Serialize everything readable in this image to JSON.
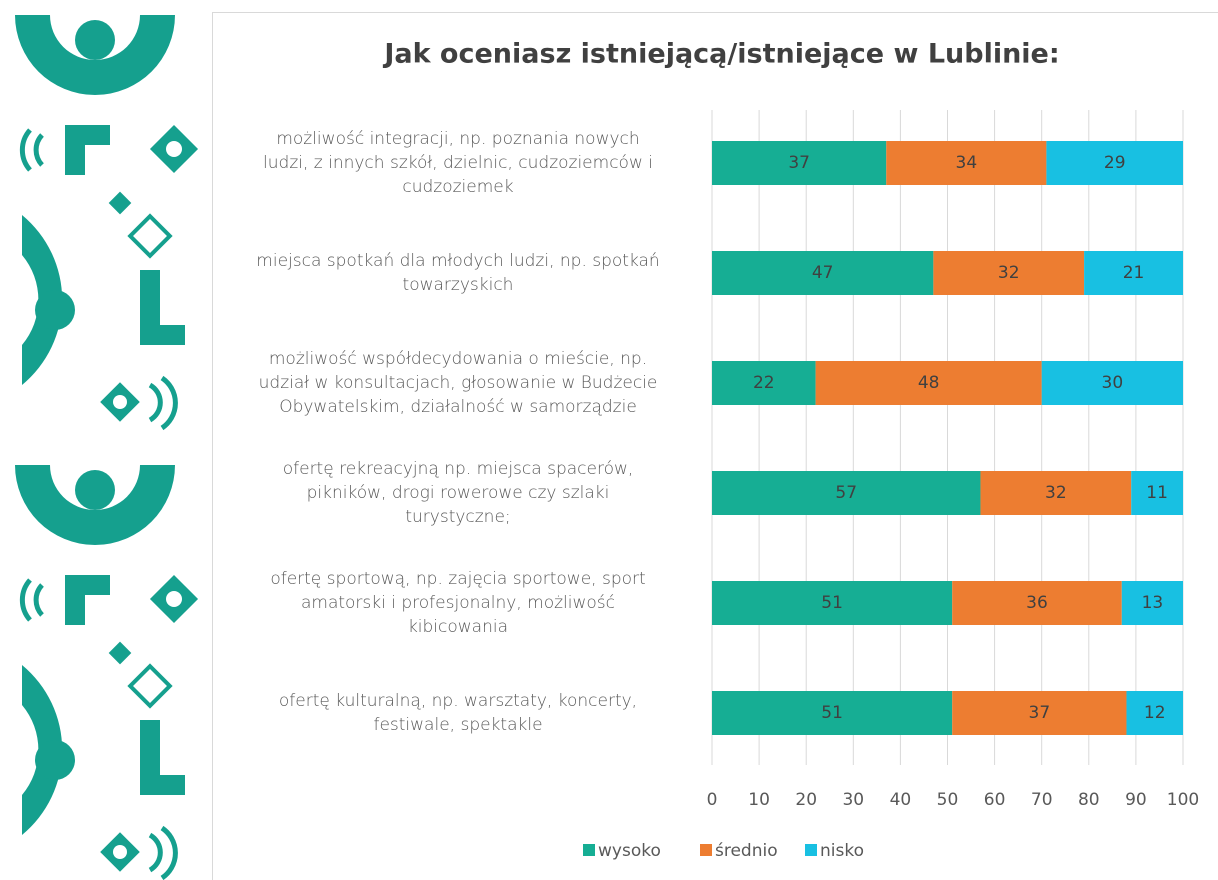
{
  "chart_data": {
    "type": "stacked-barh",
    "title": "Jak oceniasz istniejącą/istniejące w Lublinie:",
    "categories": [
      "możliwość integracji, np. poznania nowych\nludzi, z innych szkół, dzielnic, cudzoziemców i\ncudzoziemek",
      "miejsca spotkań dla młodych ludzi, np. spotkań\ntowarzyskich",
      "możliwość współdecydowania o mieście, np.\nudział w konsultacjach, głosowanie w Budżecie\nObywatelskim, działalność w samorządzie",
      "ofertę rekreacyjną np. miejsca spacerów,\npikników, drogi rowerowe czy szlaki\nturystyczne;",
      "ofertę sportową,  np. zajęcia sportowe, sport\namatorski i profesjonalny, możliwość\nkibicowania",
      "ofertę kulturalną, np. warsztaty, koncerty,\nfestiwale, spektakle"
    ],
    "series": [
      {
        "name": "wysoko",
        "color": "#16ae94",
        "values": [
          37,
          47,
          22,
          57,
          51,
          51
        ]
      },
      {
        "name": "średnio",
        "color": "#ed7d31",
        "values": [
          34,
          32,
          48,
          32,
          36,
          37
        ]
      },
      {
        "name": "nisko",
        "color": "#18c0e2",
        "values": [
          29,
          21,
          30,
          11,
          13,
          12
        ]
      }
    ],
    "xlim": [
      0,
      100
    ],
    "xticks": [
      0,
      10,
      20,
      30,
      40,
      50,
      60,
      70,
      80,
      90,
      100
    ],
    "grid": true,
    "legend": "bottom"
  }
}
